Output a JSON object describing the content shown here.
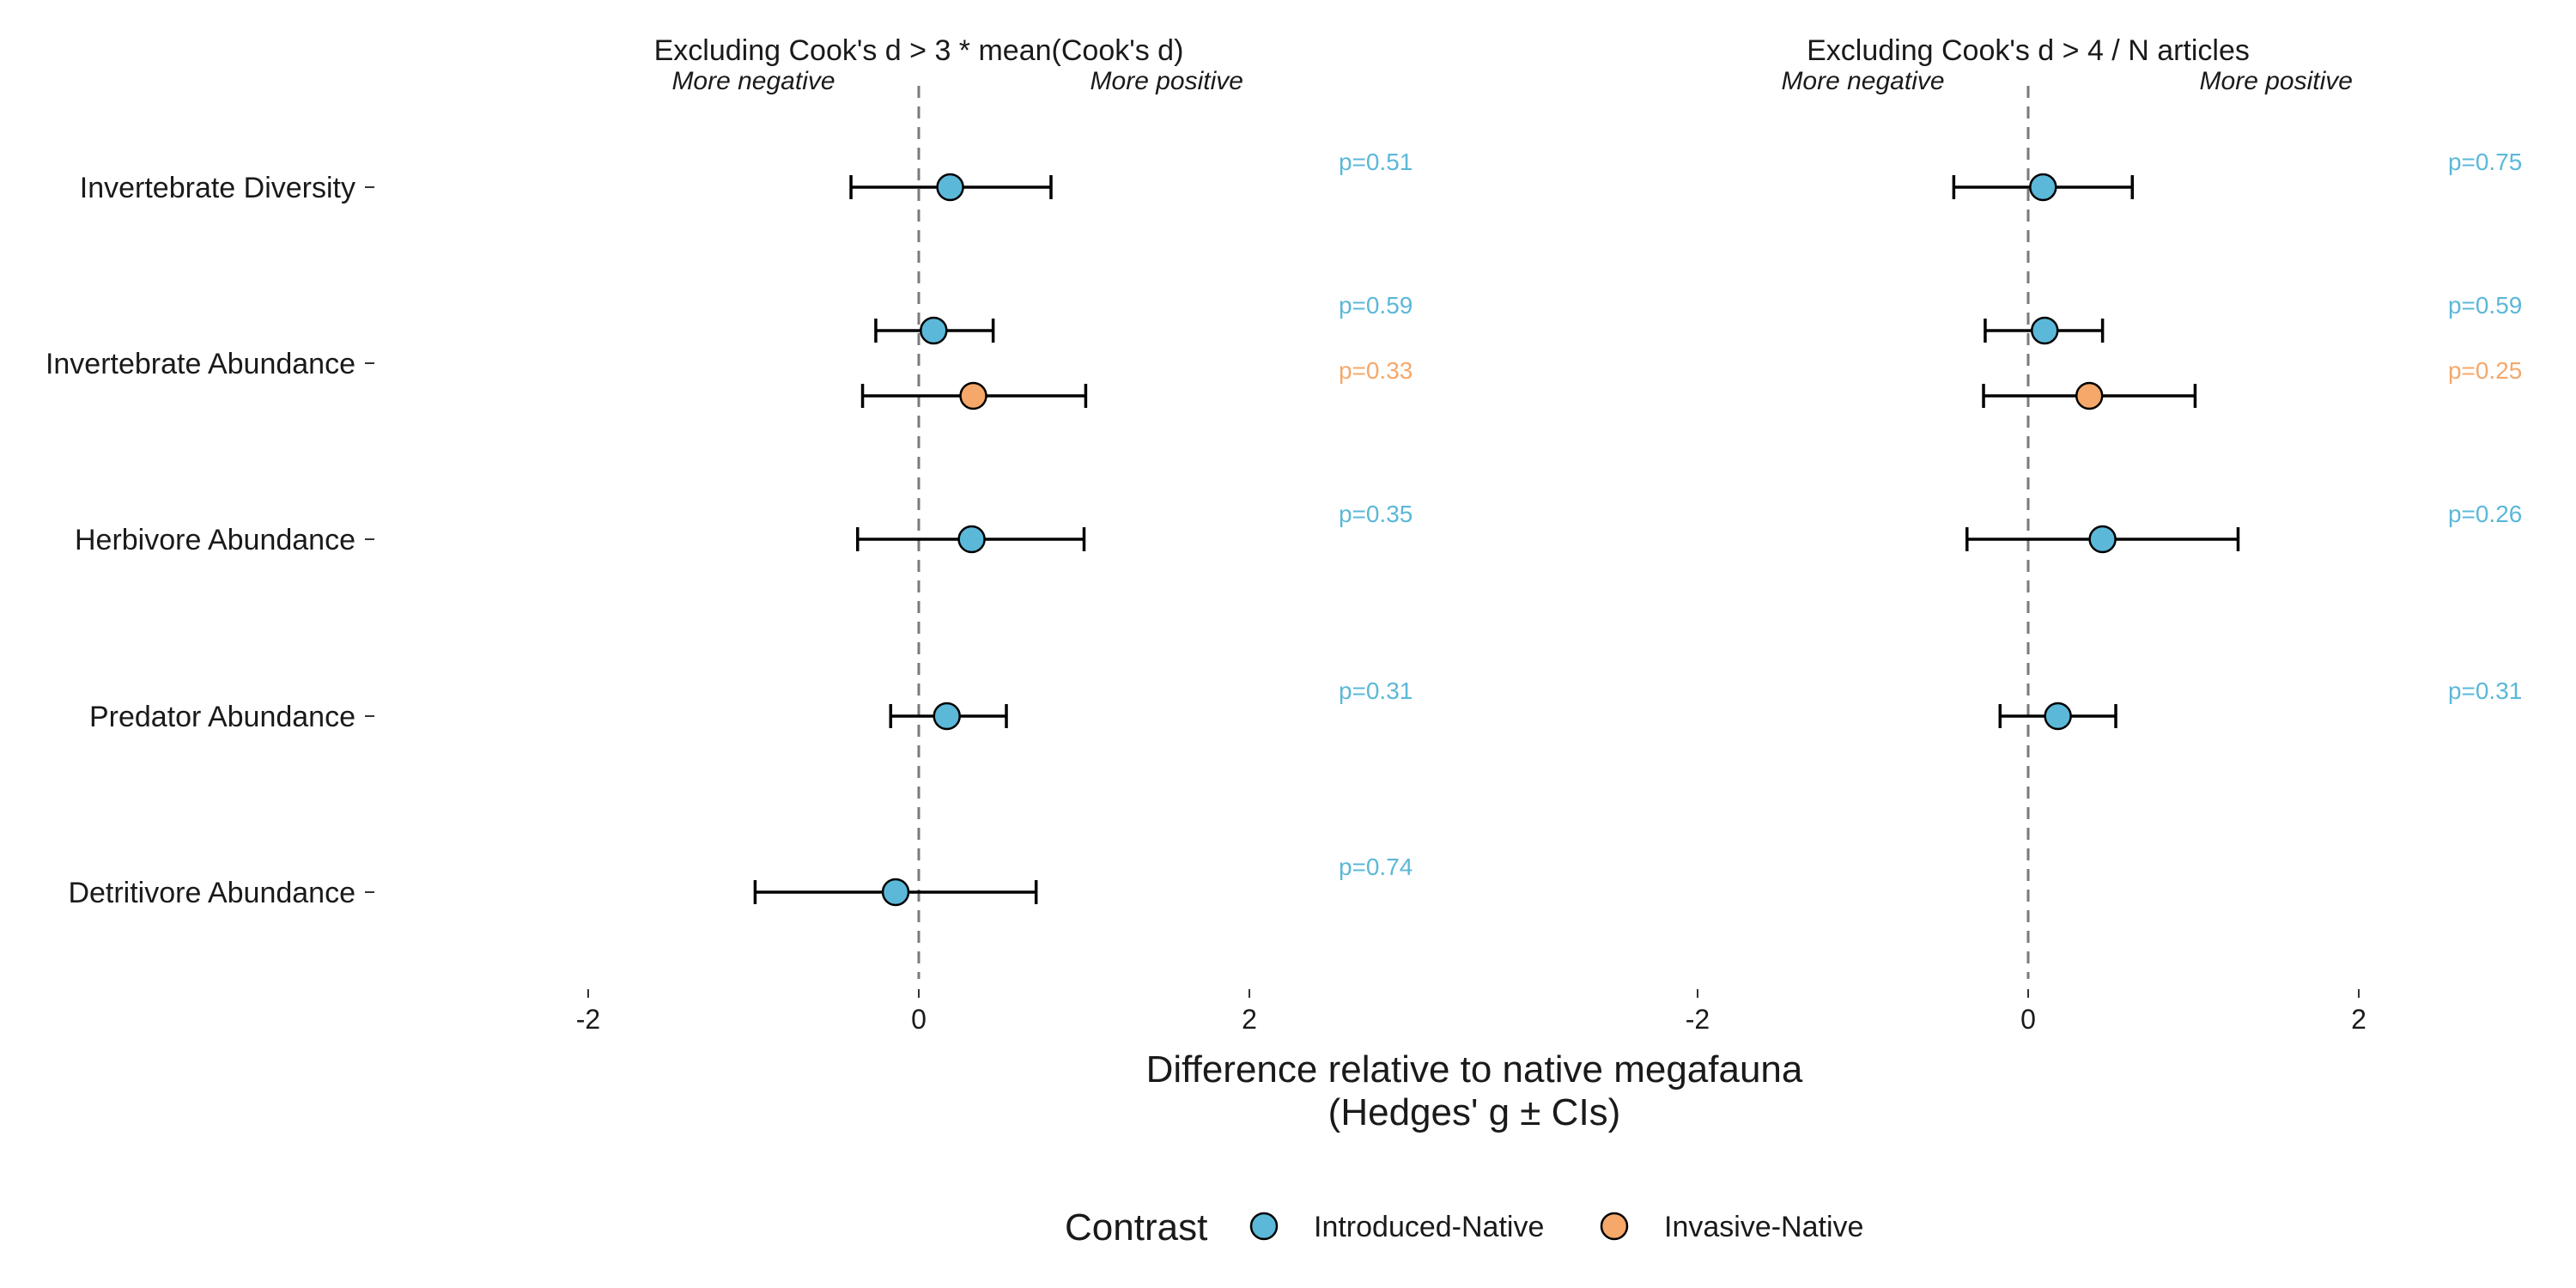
{
  "colors": {
    "Introduced-Native": "#5bb8d8",
    "Invasive-Native": "#f5a86a",
    "zero_line": "#7a7a7a",
    "error_bar": "#000000"
  },
  "chart_data": {
    "type": "forest",
    "xlabel_line1": "Difference relative to native megafauna",
    "xlabel_line2": "(Hedges' g ± CIs)",
    "xlim": [
      -2,
      2
    ],
    "x_ticks": [
      -2,
      0,
      2
    ],
    "direction_labels": {
      "negative": "More negative",
      "positive": "More positive"
    },
    "categories": [
      "Invertebrate Diversity",
      "Invertebrate Abundance",
      "Herbivore Abundance",
      "Predator Abundance",
      "Detritivore Abundance"
    ],
    "legend": {
      "title": "Contrast",
      "items": [
        "Introduced-Native",
        "Invasive-Native"
      ],
      "position": "bottom"
    },
    "panels": [
      {
        "title": "Excluding Cook's d > 3 * mean(Cook's d)",
        "points": [
          {
            "category": "Invertebrate Diversity",
            "contrast": "Introduced-Native",
            "est": 0.19,
            "lo": -0.41,
            "hi": 0.8,
            "p": "p=0.51"
          },
          {
            "category": "Invertebrate Abundance",
            "contrast": "Introduced-Native",
            "est": 0.09,
            "lo": -0.26,
            "hi": 0.45,
            "p": "p=0.59"
          },
          {
            "category": "Invertebrate Abundance",
            "contrast": "Invasive-Native",
            "est": 0.33,
            "lo": -0.34,
            "hi": 1.01,
            "p": "p=0.33"
          },
          {
            "category": "Herbivore Abundance",
            "contrast": "Introduced-Native",
            "est": 0.32,
            "lo": -0.37,
            "hi": 1.0,
            "p": "p=0.35"
          },
          {
            "category": "Predator Abundance",
            "contrast": "Introduced-Native",
            "est": 0.17,
            "lo": -0.17,
            "hi": 0.53,
            "p": "p=0.31"
          },
          {
            "category": "Detritivore Abundance",
            "contrast": "Introduced-Native",
            "est": -0.14,
            "lo": -0.99,
            "hi": 0.71,
            "p": "p=0.74"
          }
        ]
      },
      {
        "title": "Excluding Cook's d > 4 / N articles",
        "points": [
          {
            "category": "Invertebrate Diversity",
            "contrast": "Introduced-Native",
            "est": 0.09,
            "lo": -0.45,
            "hi": 0.63,
            "p": "p=0.75"
          },
          {
            "category": "Invertebrate Abundance",
            "contrast": "Introduced-Native",
            "est": 0.1,
            "lo": -0.26,
            "hi": 0.45,
            "p": "p=0.59"
          },
          {
            "category": "Invertebrate Abundance",
            "contrast": "Invasive-Native",
            "est": 0.37,
            "lo": -0.27,
            "hi": 1.01,
            "p": "p=0.25"
          },
          {
            "category": "Herbivore Abundance",
            "contrast": "Introduced-Native",
            "est": 0.45,
            "lo": -0.37,
            "hi": 1.27,
            "p": "p=0.26"
          },
          {
            "category": "Predator Abundance",
            "contrast": "Introduced-Native",
            "est": 0.18,
            "lo": -0.17,
            "hi": 0.53,
            "p": "p=0.31"
          }
        ]
      }
    ]
  }
}
